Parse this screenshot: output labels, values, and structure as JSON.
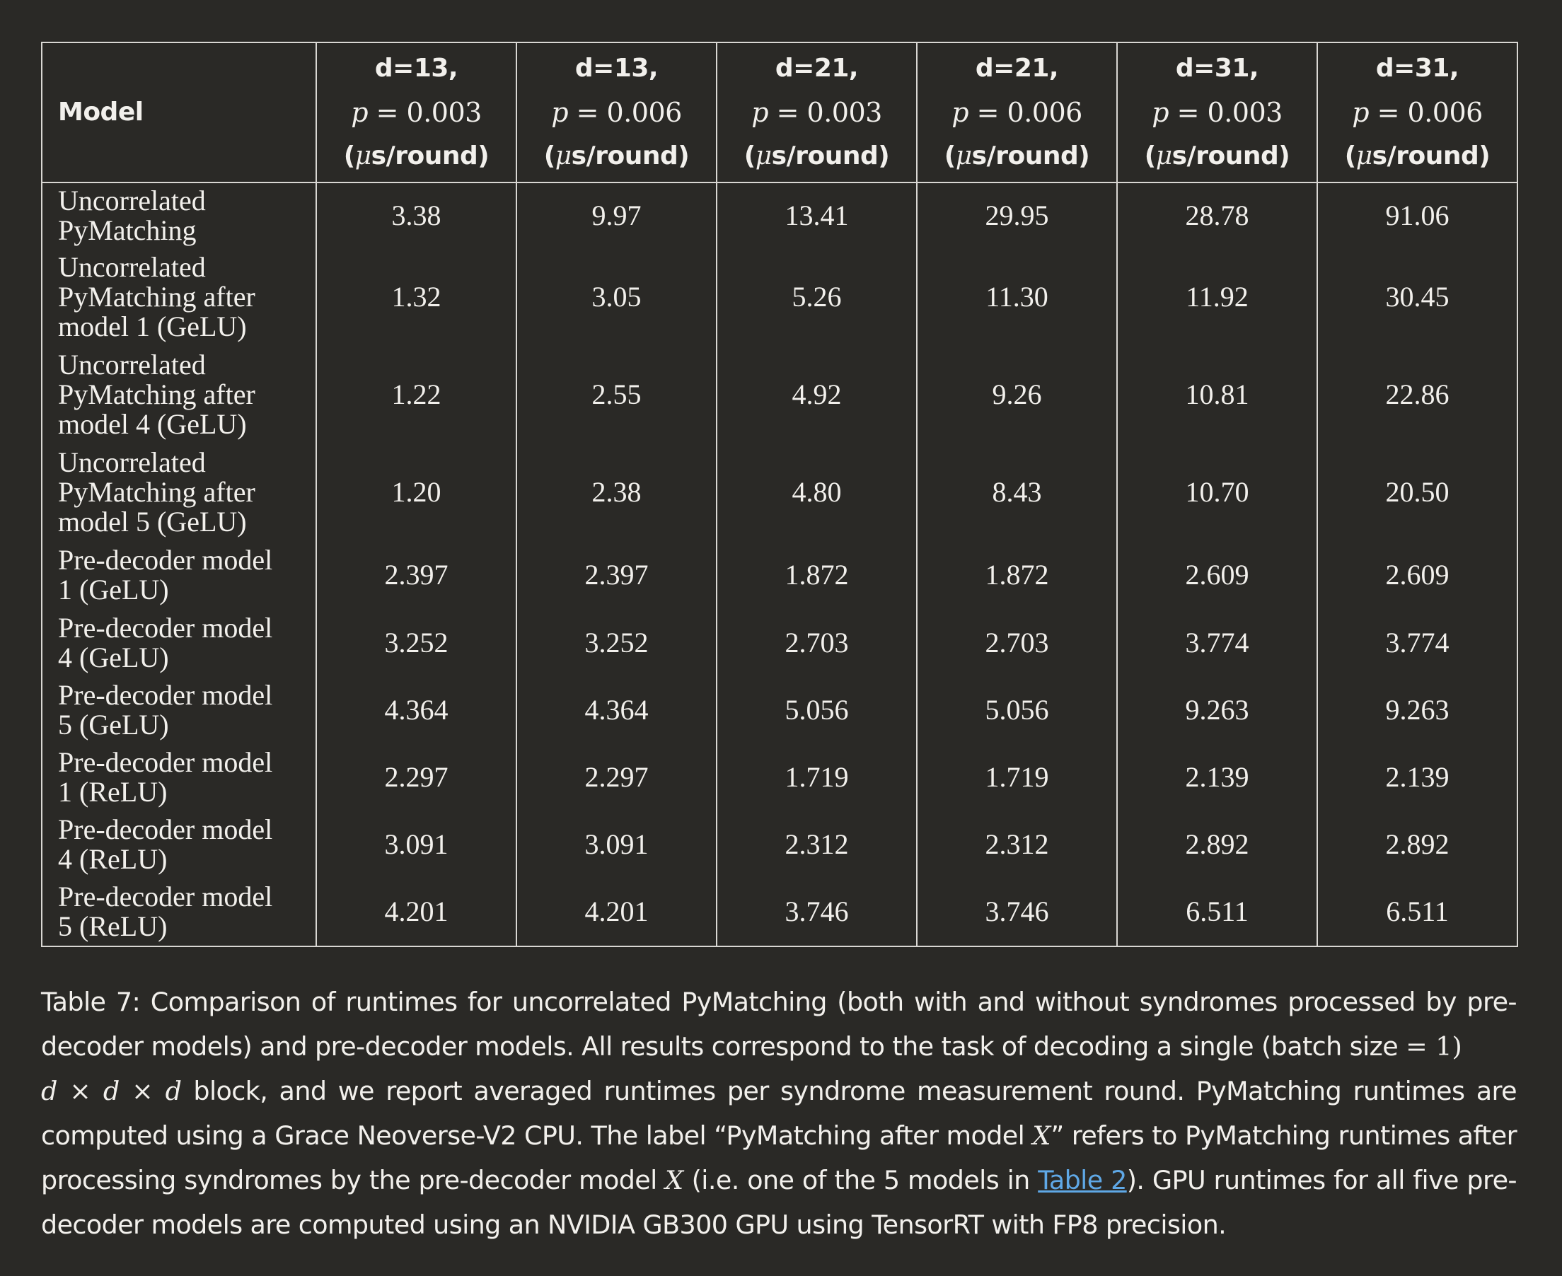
{
  "table": {
    "model_header": "Model",
    "columns": [
      {
        "d": "d=13,",
        "p_var": "p",
        "p_val": " = 0.003",
        "unit_pre": "(",
        "unit_mu": "μ",
        "unit_post": "s/round)"
      },
      {
        "d": "d=13,",
        "p_var": "p",
        "p_val": " = 0.006",
        "unit_pre": "(",
        "unit_mu": "μ",
        "unit_post": "s/round)"
      },
      {
        "d": "d=21,",
        "p_var": "p",
        "p_val": " = 0.003",
        "unit_pre": "(",
        "unit_mu": "μ",
        "unit_post": "s/round)"
      },
      {
        "d": "d=21,",
        "p_var": "p",
        "p_val": " = 0.006",
        "unit_pre": "(",
        "unit_mu": "μ",
        "unit_post": "s/round)"
      },
      {
        "d": "d=31,",
        "p_var": "p",
        "p_val": " = 0.003",
        "unit_pre": "(",
        "unit_mu": "μ",
        "unit_post": "s/round)"
      },
      {
        "d": "d=31,",
        "p_var": "p",
        "p_val": " = 0.006",
        "unit_pre": "(",
        "unit_mu": "μ",
        "unit_post": "s/round)"
      }
    ],
    "rows": [
      {
        "lines": [
          "Uncorrelated",
          "PyMatching"
        ],
        "values": [
          "3.38",
          "9.97",
          "13.41",
          "29.95",
          "28.78",
          "91.06"
        ]
      },
      {
        "lines": [
          "Uncorrelated",
          "PyMatching after",
          "model 1 (GeLU)"
        ],
        "values": [
          "1.32",
          "3.05",
          "5.26",
          "11.30",
          "11.92",
          "30.45"
        ]
      },
      {
        "lines": [
          "Uncorrelated",
          "PyMatching after",
          "model 4 (GeLU)"
        ],
        "values": [
          "1.22",
          "2.55",
          "4.92",
          "9.26",
          "10.81",
          "22.86"
        ]
      },
      {
        "lines": [
          "Uncorrelated",
          "PyMatching after",
          "model 5 (GeLU)"
        ],
        "values": [
          "1.20",
          "2.38",
          "4.80",
          "8.43",
          "10.70",
          "20.50"
        ]
      },
      {
        "lines": [
          "Pre-decoder model",
          "1 (GeLU)"
        ],
        "values": [
          "2.397",
          "2.397",
          "1.872",
          "1.872",
          "2.609",
          "2.609"
        ]
      },
      {
        "lines": [
          "Pre-decoder model",
          "4 (GeLU)"
        ],
        "values": [
          "3.252",
          "3.252",
          "2.703",
          "2.703",
          "3.774",
          "3.774"
        ]
      },
      {
        "lines": [
          "Pre-decoder model",
          "5 (GeLU)"
        ],
        "values": [
          "4.364",
          "4.364",
          "5.056",
          "5.056",
          "9.263",
          "9.263"
        ]
      },
      {
        "lines": [
          "Pre-decoder model",
          "1 (ReLU)"
        ],
        "values": [
          "2.297",
          "2.297",
          "1.719",
          "1.719",
          "2.139",
          "2.139"
        ]
      },
      {
        "lines": [
          "Pre-decoder model",
          "4 (ReLU)"
        ],
        "values": [
          "3.091",
          "3.091",
          "2.312",
          "2.312",
          "2.892",
          "2.892"
        ]
      },
      {
        "lines": [
          "Pre-decoder model",
          "5 (ReLU)"
        ],
        "values": [
          "4.201",
          "4.201",
          "3.746",
          "3.746",
          "6.511",
          "6.511"
        ]
      }
    ]
  },
  "caption": {
    "part1": "Table 7: Comparison of runtimes for uncorrelated PyMatching (both with and without syndromes processed by pre-decoder models) and pre-decoder models. All results correspond to the task of decoding a single (batch size ",
    "eq_one": "= 1)",
    "math_block": "d × d × d",
    "part2": " block, and we report averaged runtimes per syndrome measurement round. PyMatching runtimes are computed using a Grace Neoverse-V2 CPU. The label “PyMatching after model ",
    "math_x1": "X",
    "part3": "” refers to PyMatching runtimes after processing syndromes by the pre-decoder model ",
    "math_x2": "X",
    "part4": " (i.e. one of the 5 models in ",
    "link_text": "Table 2",
    "part5": "). GPU runtimes for all five pre-decoder models are computed using an NVIDIA GB300 GPU using TensorRT with FP8 precision."
  },
  "colors": {
    "background": "#2a2926",
    "text": "#f2f0ec",
    "rule": "#d9d7d3",
    "link": "#5fa8e6"
  }
}
